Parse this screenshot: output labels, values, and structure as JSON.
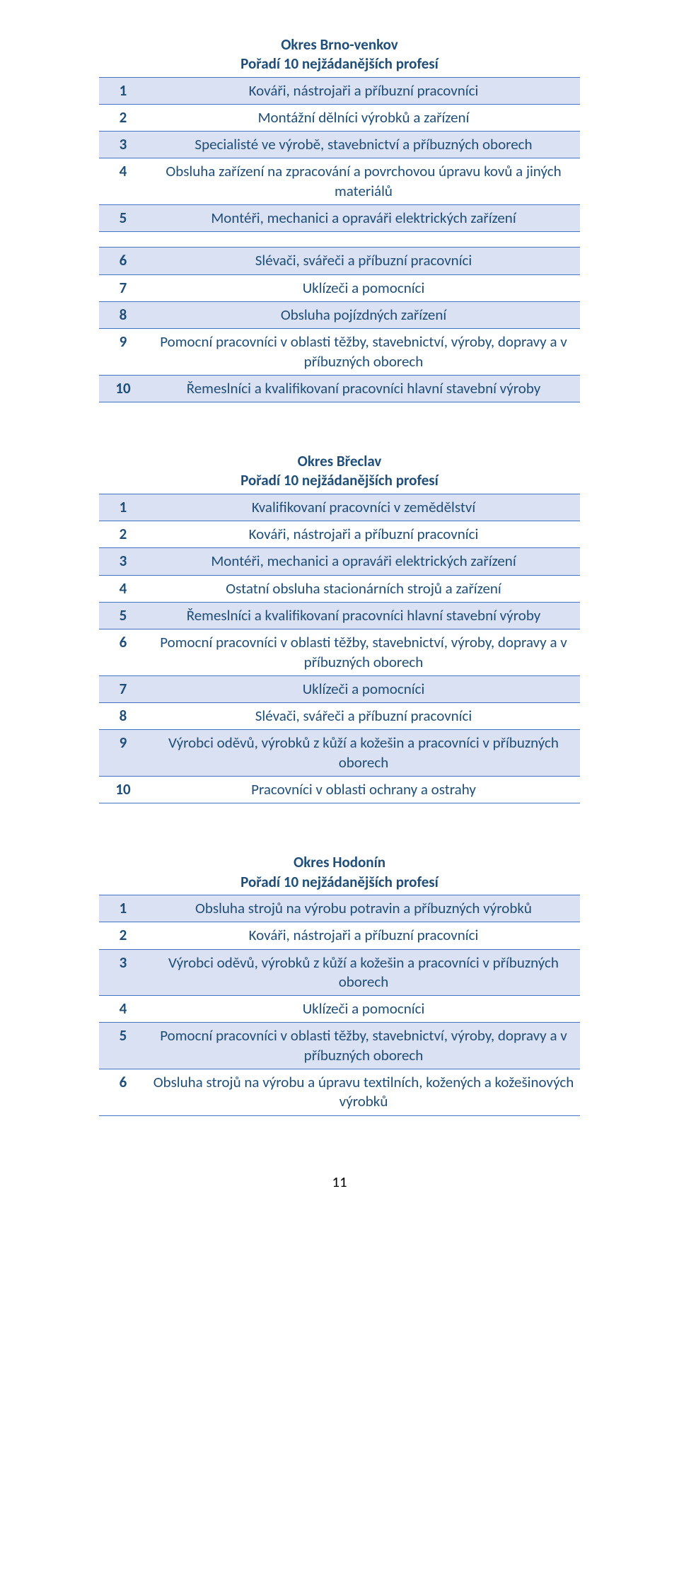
{
  "page_number": "11",
  "colors": {
    "text": "#1f4e79",
    "border": "#4472c4",
    "alt_bg": "#d9e1f2",
    "page_bg": "#ffffff"
  },
  "tables": [
    {
      "title_line1": "Okres Brno-venkov",
      "title_line2": "Pořadí 10 nejžádanějších profesí",
      "rows": [
        {
          "n": "1",
          "text": "Kováři, nástrojaři a příbuzní pracovníci"
        },
        {
          "n": "2",
          "text": "Montážní dělníci výrobků a zařízení"
        },
        {
          "n": "3",
          "text": "Specialisté ve výrobě, stavebnictví a příbuzných oborech"
        },
        {
          "n": "4",
          "text": "Obsluha zařízení na zpracování a povrchovou úpravu kovů a jiných materiálů"
        },
        {
          "n": "5",
          "text": "Montéři, mechanici a opraváři elektrických zařízení"
        },
        {
          "gap": true
        },
        {
          "n": "6",
          "text": "Slévači, svářeči a příbuzní pracovníci"
        },
        {
          "n": "7",
          "text": "Uklízeči a pomocníci"
        },
        {
          "n": "8",
          "text": "Obsluha pojízdných zařízení"
        },
        {
          "n": "9",
          "text": "Pomocní pracovníci v oblasti těžby, stavebnictví, výroby, dopravy a v příbuzných oborech"
        },
        {
          "n": "10",
          "text": "Řemeslníci a kvalifikovaní pracovníci hlavní stavební výroby"
        }
      ]
    },
    {
      "title_line1": "Okres Břeclav",
      "title_line2": "Pořadí 10 nejžádanějších profesí",
      "rows": [
        {
          "n": "1",
          "text": "Kvalifikovaní pracovníci v zemědělství"
        },
        {
          "n": "2",
          "text": "Kováři, nástrojaři a příbuzní pracovníci"
        },
        {
          "n": "3",
          "text": "Montéři, mechanici a opraváři elektrických zařízení"
        },
        {
          "n": "4",
          "text": "Ostatní obsluha stacionárních strojů a zařízení"
        },
        {
          "n": "5",
          "text": "Řemeslníci a kvalifikovaní pracovníci hlavní stavební výroby"
        },
        {
          "n": "6",
          "text": "Pomocní pracovníci v oblasti těžby, stavebnictví, výroby, dopravy a v příbuzných oborech"
        },
        {
          "n": "7",
          "text": "Uklízeči a pomocníci"
        },
        {
          "n": "8",
          "text": "Slévači, svářeči a příbuzní pracovníci"
        },
        {
          "n": "9",
          "text": "Výrobci oděvů, výrobků z kůží a kožešin a pracovníci v příbuzných oborech"
        },
        {
          "n": "10",
          "text": "Pracovníci v oblasti ochrany a ostrahy"
        }
      ]
    },
    {
      "title_line1": "Okres Hodonín",
      "title_line2": "Pořadí 10 nejžádanějších profesí",
      "rows": [
        {
          "n": "1",
          "text": "Obsluha strojů na výrobu potravin a příbuzných výrobků"
        },
        {
          "n": "2",
          "text": "Kováři, nástrojaři a příbuzní pracovníci"
        },
        {
          "n": "3",
          "text": "Výrobci oděvů, výrobků z kůží a kožešin a pracovníci v příbuzných oborech"
        },
        {
          "n": "4",
          "text": "Uklízeči a pomocníci"
        },
        {
          "n": "5",
          "text": "Pomocní pracovníci v oblasti těžby, stavebnictví, výroby, dopravy a v příbuzných oborech"
        },
        {
          "n": "6",
          "text": "Obsluha strojů na výrobu a úpravu textilních, kožených a kožešinových výrobků"
        }
      ]
    }
  ]
}
